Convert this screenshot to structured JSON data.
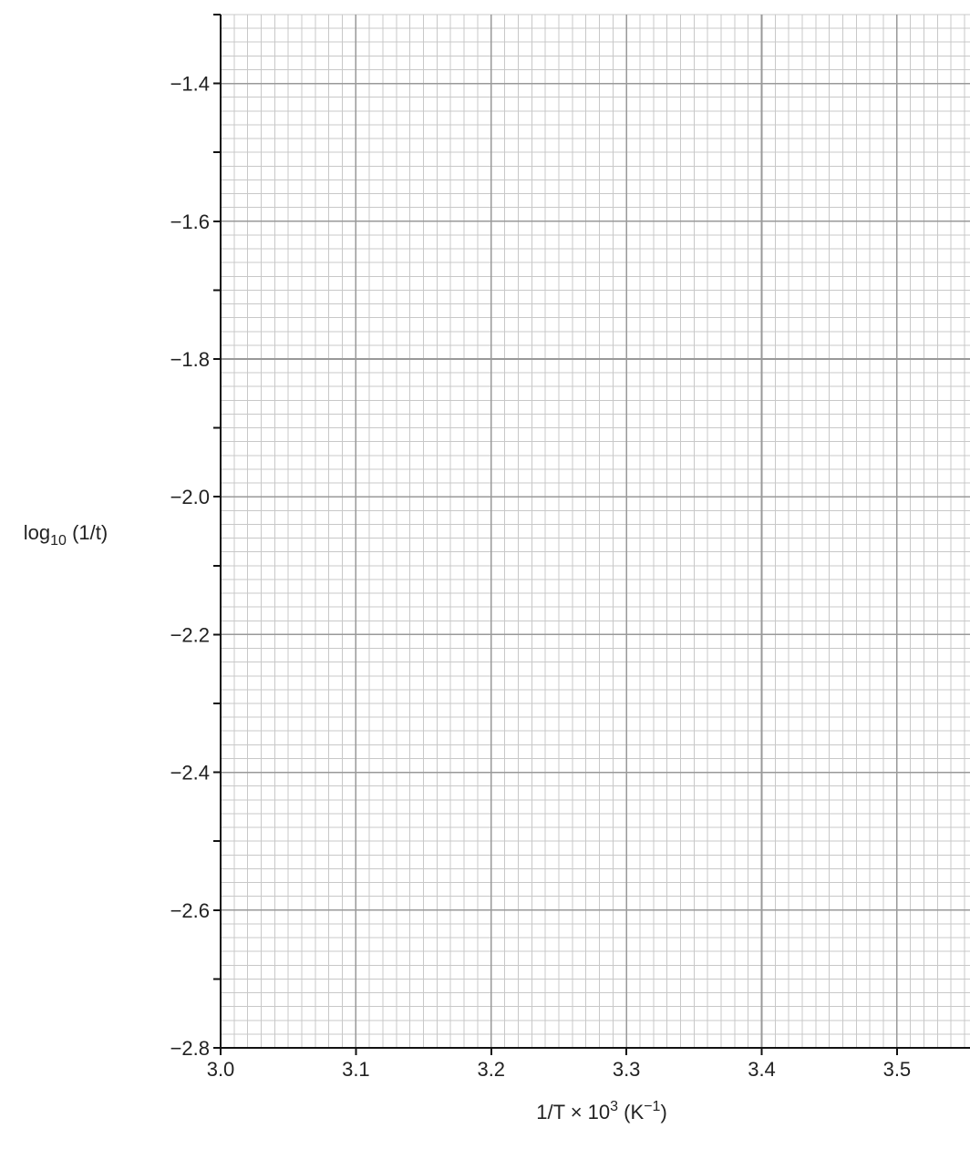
{
  "chart_data": {
    "type": "scatter",
    "title": "",
    "xlabel": {
      "base": "1/T × 10",
      "exponent": "3",
      "unit_open": " (K",
      "unit_exponent": "−1",
      "unit_close": ")"
    },
    "ylabel": {
      "base": "log",
      "subscript": "10",
      "rest": " (1/t)"
    },
    "xlim": [
      3.0,
      3.554
    ],
    "ylim": [
      -2.8,
      -1.3
    ],
    "x_ticks": [
      {
        "value": 3.0,
        "label": "3.0"
      },
      {
        "value": 3.1,
        "label": "3.1"
      },
      {
        "value": 3.2,
        "label": "3.2"
      },
      {
        "value": 3.3,
        "label": "3.3"
      },
      {
        "value": 3.4,
        "label": "3.4"
      },
      {
        "value": 3.5,
        "label": "3.5"
      }
    ],
    "y_ticks": [
      {
        "value": -1.4,
        "label": "−1.4"
      },
      {
        "value": -1.6,
        "label": "−1.6"
      },
      {
        "value": -1.8,
        "label": "−1.8"
      },
      {
        "value": -2.0,
        "label": "−2.0"
      },
      {
        "value": -2.2,
        "label": "−2.2"
      },
      {
        "value": -2.4,
        "label": "−2.4"
      },
      {
        "value": -2.6,
        "label": "−2.6"
      },
      {
        "value": -2.8,
        "label": "−2.8"
      }
    ],
    "grid": {
      "on": true,
      "major_x_step": 0.1,
      "minor_x_step": 0.01,
      "major_y_step": 0.2,
      "minor_y_step": 0.02
    },
    "series": [],
    "colors": {
      "major_grid": "#999999",
      "minor_grid": "#c8c8c8",
      "axis": "#111111"
    }
  }
}
